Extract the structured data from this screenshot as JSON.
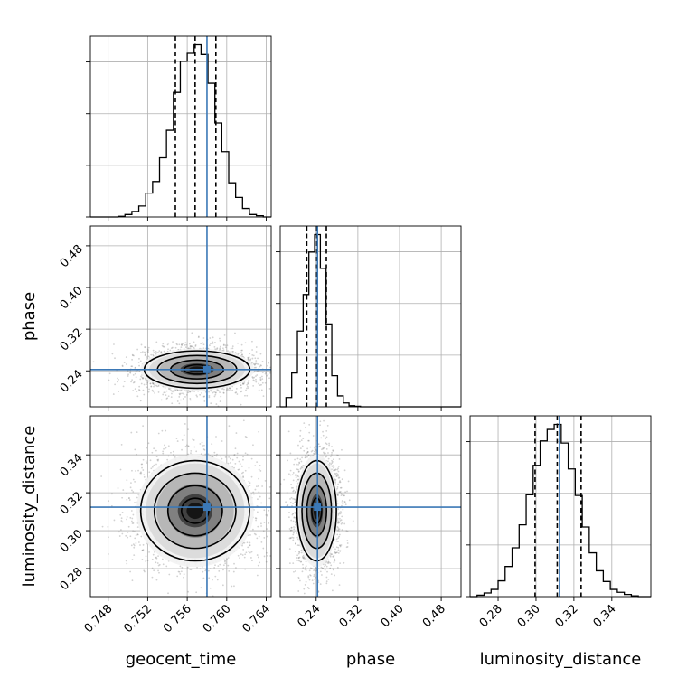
{
  "chart_data": {
    "type": "corner",
    "parameters": [
      "geocent_time",
      "phase",
      "luminosity_distance"
    ],
    "ranges": {
      "geocent_time": [
        0.7462,
        0.7645
      ],
      "phase": [
        0.171,
        0.518
      ],
      "luminosity_distance": [
        0.2652,
        0.3606
      ]
    },
    "ticks": {
      "geocent_time": [
        "0.748",
        "0.752",
        "0.756",
        "0.760",
        "0.764"
      ],
      "phase": [
        "0.24",
        "0.32",
        "0.40",
        "0.48"
      ],
      "luminosity_distance": [
        "0.28",
        "0.30",
        "0.32",
        "0.34"
      ]
    },
    "truths": {
      "geocent_time": 0.758,
      "phase": 0.2425,
      "luminosity_distance": 0.3124
    },
    "quantiles": {
      "geocent_time": [
        0.7548,
        0.7568,
        0.7589
      ],
      "phase": [
        0.222,
        0.241,
        0.2595
      ],
      "luminosity_distance": [
        0.2995,
        0.3112,
        0.3238
      ]
    },
    "histograms": {
      "geocent_time": {
        "bins": [
          0.7462,
          0.7469,
          0.7476,
          0.7483,
          0.749,
          0.7497,
          0.7504,
          0.7511,
          0.7518,
          0.7525,
          0.7532,
          0.7539,
          0.7546,
          0.7553,
          0.756,
          0.7567,
          0.7574,
          0.7581,
          0.7588,
          0.7595,
          0.7602,
          0.7609,
          0.7616,
          0.7623,
          0.763,
          0.7637,
          0.7645
        ],
        "counts": [
          0,
          0,
          0,
          0,
          1,
          4,
          9,
          18,
          39,
          58,
          97,
          142,
          204,
          255,
          268,
          282,
          266,
          219,
          154,
          107,
          56,
          32,
          14,
          4,
          2,
          0
        ]
      },
      "phase": {
        "bins": [
          0.171,
          0.182,
          0.193,
          0.204,
          0.215,
          0.226,
          0.237,
          0.248,
          0.259,
          0.27,
          0.281,
          0.292,
          0.303,
          0.314,
          0.325,
          0.336,
          0.347,
          0.358,
          0.369,
          0.38,
          0.391,
          0.402,
          0.413,
          0.424,
          0.435,
          0.446,
          0.518
        ],
        "counts": [
          0,
          17,
          62,
          139,
          206,
          284,
          316,
          254,
          152,
          57,
          20,
          7,
          2,
          1,
          0,
          0,
          0,
          0,
          0,
          0,
          0,
          0,
          0,
          0,
          0,
          0
        ]
      },
      "luminosity_distance": {
        "bins": [
          0.2652,
          0.2689,
          0.2726,
          0.2763,
          0.28,
          0.2837,
          0.2874,
          0.2911,
          0.2948,
          0.2985,
          0.3022,
          0.3059,
          0.3096,
          0.3133,
          0.317,
          0.3207,
          0.3244,
          0.3281,
          0.3318,
          0.3355,
          0.3392,
          0.3429,
          0.3466,
          0.3503,
          0.354,
          0.3577,
          0.3606
        ],
        "counts": [
          0,
          2,
          5,
          10,
          22,
          42,
          68,
          100,
          142,
          183,
          217,
          233,
          240,
          214,
          178,
          141,
          97,
          61,
          36,
          21,
          10,
          6,
          3,
          1,
          0,
          0
        ]
      }
    },
    "joint": [
      {
        "x": "geocent_time",
        "y": "phase",
        "center": [
          0.757,
          0.2425
        ],
        "sd": [
          0.00262,
          0.0183
        ],
        "contour_levels": [
          0.5,
          1.0,
          1.5,
          2.0
        ]
      },
      {
        "x": "geocent_time",
        "y": "luminosity_distance",
        "center": [
          0.7568,
          0.3105
        ],
        "sd": [
          0.0027,
          0.0135
        ],
        "contour_levels": [
          0.5,
          1.0,
          1.5,
          2.0
        ]
      },
      {
        "x": "phase",
        "y": "luminosity_distance",
        "center": [
          0.241,
          0.3105
        ],
        "sd": [
          0.0185,
          0.0135
        ],
        "contour_levels": [
          0.5,
          1.0,
          1.5,
          2.0
        ]
      }
    ],
    "grid": true,
    "colors": {
      "truth": "#3b78b6",
      "hist": "#000000",
      "points": "#7f7f7f"
    }
  }
}
